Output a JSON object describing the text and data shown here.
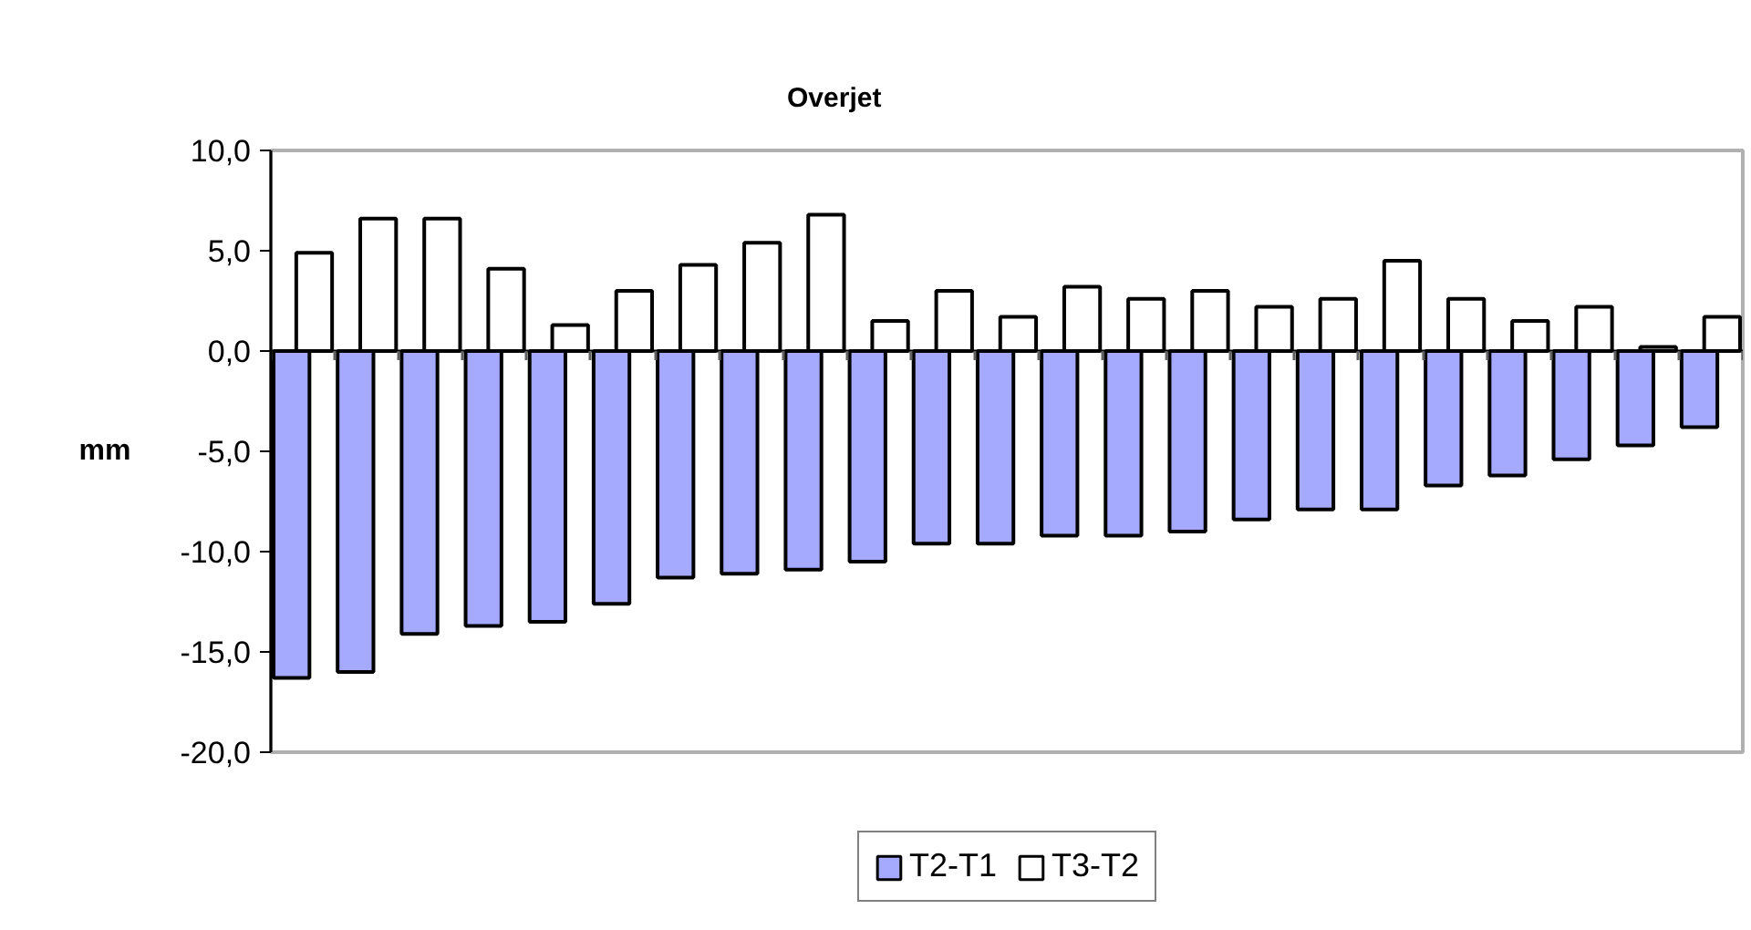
{
  "chart_data": {
    "type": "bar",
    "title": "Overjet",
    "ylabel": "mm",
    "categories": [
      null,
      null,
      null,
      null,
      null,
      null,
      null,
      null,
      null,
      null,
      null,
      null,
      null,
      null,
      null,
      null,
      null,
      null,
      null,
      null,
      null,
      null,
      null
    ],
    "series": [
      {
        "name": "T2-T1",
        "color": "#a6aaff",
        "values": [
          -16.3,
          -16.0,
          -14.1,
          -13.7,
          -13.5,
          -12.6,
          -11.3,
          -11.1,
          -10.9,
          -10.5,
          -9.6,
          -9.6,
          -9.2,
          -9.2,
          -9.0,
          -8.4,
          -7.9,
          -7.9,
          -6.7,
          -6.2,
          -5.4,
          -4.7,
          -3.8
        ]
      },
      {
        "name": "T3-T2",
        "color": "#ffffff",
        "values": [
          4.9,
          6.6,
          6.6,
          4.1,
          1.3,
          3.0,
          4.3,
          5.4,
          6.8,
          1.5,
          3.0,
          1.7,
          3.2,
          2.6,
          3.0,
          2.2,
          2.6,
          4.5,
          2.6,
          1.5,
          2.2,
          0.2,
          1.7
        ]
      }
    ],
    "ylim": [
      -20,
      10
    ],
    "yticks": [
      {
        "value": -20,
        "label": "-20,0"
      },
      {
        "value": -15,
        "label": "-15,0"
      },
      {
        "value": -10,
        "label": "-10,0"
      },
      {
        "value": -5,
        "label": "-5,0"
      },
      {
        "value": 0,
        "label": "0,0"
      },
      {
        "value": 5,
        "label": "5,0"
      },
      {
        "value": 10,
        "label": "10,0"
      }
    ],
    "tick_labels": "y",
    "legend": "bottom"
  }
}
